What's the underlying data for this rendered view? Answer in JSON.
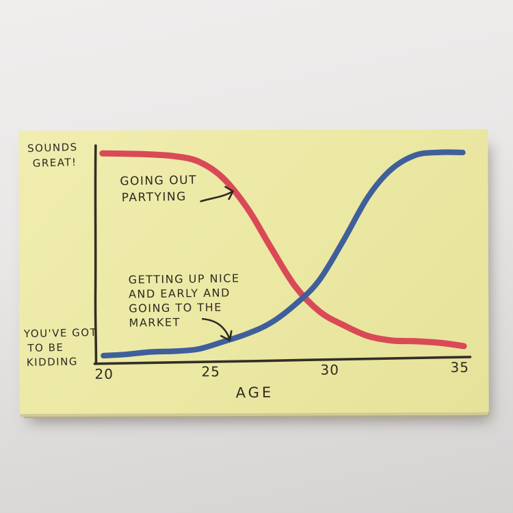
{
  "chart_data": {
    "type": "line",
    "title": "Hand-drawn sticky-note chart: partying vs. early market trips by age",
    "xlabel": "AGE",
    "ylabel": "",
    "xlim": [
      20,
      35
    ],
    "ylim": [
      0,
      1
    ],
    "grid": false,
    "legend": "inline handwritten annotations with arrows",
    "y_axis_qualitative": {
      "top": "SOUNDS GREAT!",
      "bottom": "YOU'VE GOT TO BE KIDDING"
    },
    "x": [
      20,
      21,
      22,
      23,
      24,
      25,
      26,
      27,
      28,
      29,
      30,
      31,
      32,
      33,
      34,
      35
    ],
    "series": [
      {
        "name": "GOING OUT PARTYING",
        "color": "#d94a56",
        "values": [
          1.0,
          1.0,
          0.99,
          0.98,
          0.96,
          0.88,
          0.72,
          0.53,
          0.34,
          0.21,
          0.14,
          0.09,
          0.07,
          0.06,
          0.05,
          0.04
        ]
      },
      {
        "name": "GETTING UP NICE AND EARLY AND GOING TO THE MARKET",
        "color": "#3f5f9b",
        "values": [
          0.0,
          0.0,
          0.01,
          0.02,
          0.03,
          0.06,
          0.1,
          0.16,
          0.25,
          0.36,
          0.56,
          0.78,
          0.91,
          0.98,
          1.0,
          1.0
        ]
      }
    ],
    "crossing_age_estimate": 28.4
  },
  "note": {
    "colors": {
      "paper": "#ece9a5",
      "ink": "#2e2a21",
      "red_curve": "#d94a56",
      "blue_curve": "#3f5f9b",
      "background": "#e4e2e1"
    },
    "axis": {
      "x_ticks": [
        "20",
        "25",
        "30",
        "35"
      ],
      "x_label": "AGE"
    },
    "labels": {
      "y_top": [
        "SOUNDS",
        "GREAT!"
      ],
      "y_bottom": [
        "YOU'VE GOT",
        "TO BE",
        "KIDDING"
      ],
      "red_series": [
        "GOING OUT",
        "PARTYING"
      ],
      "blue_series": [
        "GETTING UP NICE",
        "AND EARLY AND",
        "GOING TO THE",
        "MARKET"
      ]
    }
  }
}
